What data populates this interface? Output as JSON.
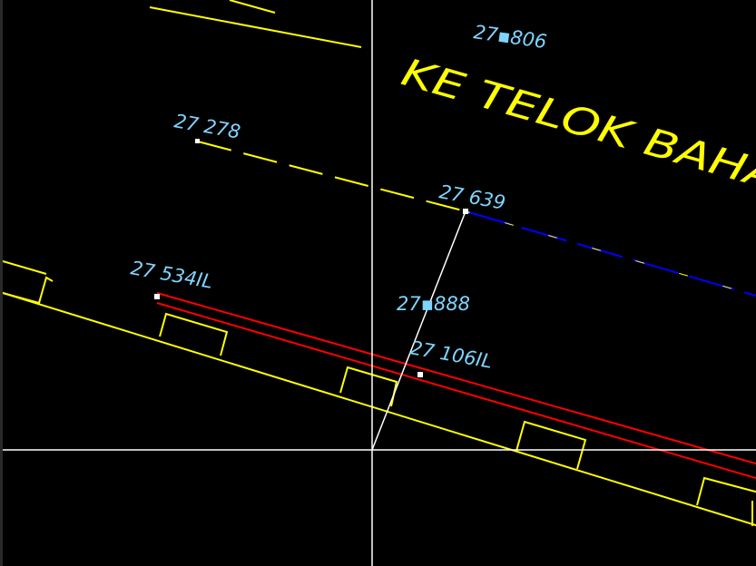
{
  "colors": {
    "background": "#000000",
    "crosshair": "#ffffff",
    "boundary": "#ffff00",
    "road_edge": "#ffff00",
    "pipe": "#ff0000",
    "drain": "#0000ff",
    "annotation": "#7fd4ff",
    "measure": "#ffffff"
  },
  "road_label": "KE TELOK BAHA",
  "levels": [
    {
      "id": "lvl-806",
      "text": "27▪806"
    },
    {
      "id": "lvl-278",
      "text": "27 278"
    },
    {
      "id": "lvl-639",
      "text": "27 639"
    },
    {
      "id": "lvl-534",
      "text": "27 534IL"
    },
    {
      "id": "lvl-888",
      "text": "27▪888"
    },
    {
      "id": "lvl-106",
      "text": "27 106IL"
    }
  ]
}
